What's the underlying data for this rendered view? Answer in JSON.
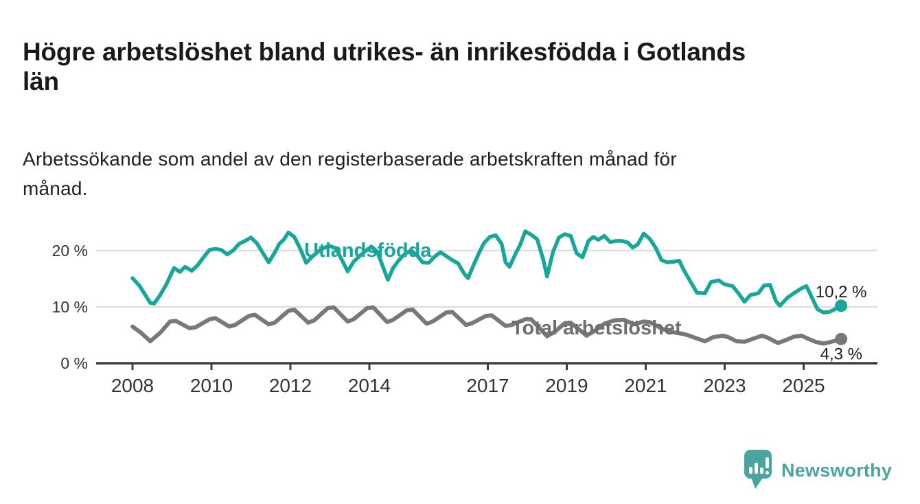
{
  "header": {
    "title_lines": [
      "Högre arbetslöshet bland utrikes- än inrikesfödda i Gotlands",
      "län"
    ],
    "subtitle_lines": [
      "Arbetssökande som andel av den registerbaserade arbetskraften månad för",
      "månad."
    ]
  },
  "chart_data": {
    "type": "line",
    "title": "Högre arbetslöshet bland utrikes- än inrikesfödda i Gotlands län",
    "subtitle": "Arbetssökande som andel av den registerbaserade arbetskraften månad för månad.",
    "unit": "%",
    "grid": "horizontal",
    "legend_position": "inline-labels",
    "x_axis": {
      "ticks": [
        2008,
        2010,
        2012,
        2014,
        2017,
        2019,
        2021,
        2023,
        2025
      ],
      "range": [
        2007.1,
        2026.9
      ]
    },
    "y_axis": {
      "range": [
        0,
        24
      ],
      "ticks": [
        {
          "value": 0,
          "label": "0 %"
        },
        {
          "value": 10,
          "label": "10 %"
        },
        {
          "value": 20,
          "label": "20 %"
        }
      ]
    },
    "colors": {
      "axis": "#3d3d3d",
      "grid": "#dadada",
      "tick_labels": "#333333",
      "value_labels": "#1d1d1d"
    },
    "series": [
      {
        "name": "Utlandsfödda",
        "color": "#18a69a",
        "end_value": 10.2,
        "end_value_label": "10,2 %",
        "label_pos": {
          "x": 2012.35,
          "y": 18.9
        },
        "value_label_pos": {
          "x": 2025.3,
          "y": 11.7
        },
        "points": [
          [
            2008.0,
            15.1
          ],
          [
            2008.17,
            13.8
          ],
          [
            2008.3,
            12.4
          ],
          [
            2008.45,
            10.7
          ],
          [
            2008.55,
            10.6
          ],
          [
            2008.7,
            12.1
          ],
          [
            2008.85,
            13.9
          ],
          [
            2009.05,
            16.9
          ],
          [
            2009.2,
            16.2
          ],
          [
            2009.33,
            17.1
          ],
          [
            2009.5,
            16.4
          ],
          [
            2009.65,
            17.4
          ],
          [
            2009.8,
            18.8
          ],
          [
            2009.95,
            20.1
          ],
          [
            2010.1,
            20.3
          ],
          [
            2010.25,
            20.1
          ],
          [
            2010.4,
            19.3
          ],
          [
            2010.55,
            20.0
          ],
          [
            2010.7,
            21.2
          ],
          [
            2010.85,
            21.7
          ],
          [
            2011.0,
            22.3
          ],
          [
            2011.15,
            21.3
          ],
          [
            2011.3,
            19.6
          ],
          [
            2011.45,
            17.9
          ],
          [
            2011.6,
            19.6
          ],
          [
            2011.72,
            21.2
          ],
          [
            2011.83,
            21.9
          ],
          [
            2011.95,
            23.2
          ],
          [
            2012.1,
            22.4
          ],
          [
            2012.25,
            20.3
          ],
          [
            2012.4,
            17.8
          ],
          [
            2012.55,
            18.9
          ],
          [
            2012.7,
            19.8
          ],
          [
            2012.85,
            20.5
          ],
          [
            2013.0,
            20.8
          ],
          [
            2013.15,
            20.4
          ],
          [
            2013.3,
            18.4
          ],
          [
            2013.45,
            16.3
          ],
          [
            2013.6,
            18.0
          ],
          [
            2013.75,
            19.0
          ],
          [
            2013.9,
            19.9
          ],
          [
            2014.05,
            20.7
          ],
          [
            2014.2,
            19.8
          ],
          [
            2014.35,
            17.0
          ],
          [
            2014.47,
            14.8
          ],
          [
            2014.6,
            16.9
          ],
          [
            2014.75,
            18.3
          ],
          [
            2014.9,
            19.4
          ],
          [
            2015.05,
            20.0
          ],
          [
            2015.2,
            19.2
          ],
          [
            2015.35,
            17.9
          ],
          [
            2015.5,
            17.8
          ],
          [
            2015.65,
            18.9
          ],
          [
            2015.8,
            19.7
          ],
          [
            2015.95,
            19.0
          ],
          [
            2016.1,
            18.3
          ],
          [
            2016.25,
            17.7
          ],
          [
            2016.4,
            15.9
          ],
          [
            2016.5,
            15.1
          ],
          [
            2016.65,
            17.6
          ],
          [
            2016.8,
            19.9
          ],
          [
            2016.9,
            21.3
          ],
          [
            2017.05,
            22.4
          ],
          [
            2017.2,
            22.7
          ],
          [
            2017.35,
            21.2
          ],
          [
            2017.45,
            17.9
          ],
          [
            2017.55,
            17.1
          ],
          [
            2017.7,
            19.4
          ],
          [
            2017.82,
            21.0
          ],
          [
            2017.95,
            23.4
          ],
          [
            2018.1,
            22.8
          ],
          [
            2018.25,
            22.0
          ],
          [
            2018.4,
            18.5
          ],
          [
            2018.5,
            15.4
          ],
          [
            2018.65,
            19.7
          ],
          [
            2018.8,
            22.3
          ],
          [
            2018.95,
            22.9
          ],
          [
            2019.1,
            22.6
          ],
          [
            2019.25,
            19.5
          ],
          [
            2019.4,
            18.8
          ],
          [
            2019.55,
            21.7
          ],
          [
            2019.67,
            22.4
          ],
          [
            2019.8,
            21.9
          ],
          [
            2019.95,
            22.6
          ],
          [
            2020.1,
            21.5
          ],
          [
            2020.25,
            21.7
          ],
          [
            2020.4,
            21.7
          ],
          [
            2020.55,
            21.4
          ],
          [
            2020.67,
            20.5
          ],
          [
            2020.8,
            21.1
          ],
          [
            2020.95,
            23.0
          ],
          [
            2021.1,
            22.1
          ],
          [
            2021.25,
            20.5
          ],
          [
            2021.4,
            18.3
          ],
          [
            2021.55,
            17.9
          ],
          [
            2021.7,
            18.0
          ],
          [
            2021.85,
            18.2
          ],
          [
            2021.95,
            16.7
          ],
          [
            2022.1,
            14.9
          ],
          [
            2022.3,
            12.5
          ],
          [
            2022.5,
            12.4
          ],
          [
            2022.65,
            14.4
          ],
          [
            2022.85,
            14.7
          ],
          [
            2023.0,
            14.0
          ],
          [
            2023.2,
            13.7
          ],
          [
            2023.35,
            12.4
          ],
          [
            2023.5,
            10.9
          ],
          [
            2023.65,
            12.1
          ],
          [
            2023.85,
            12.4
          ],
          [
            2024.0,
            13.8
          ],
          [
            2024.15,
            13.9
          ],
          [
            2024.3,
            11.0
          ],
          [
            2024.4,
            10.2
          ],
          [
            2024.6,
            11.7
          ],
          [
            2024.75,
            12.4
          ],
          [
            2024.95,
            13.3
          ],
          [
            2025.07,
            13.7
          ],
          [
            2025.2,
            11.8
          ],
          [
            2025.35,
            9.6
          ],
          [
            2025.5,
            9.0
          ],
          [
            2025.65,
            9.1
          ],
          [
            2025.8,
            9.6
          ],
          [
            2025.95,
            10.2
          ]
        ]
      },
      {
        "name": "Total arbetslöshet",
        "color": "#787878",
        "label_color": "#6f6f6f",
        "end_value": 4.3,
        "end_value_label": "4,3 %",
        "label_pos": {
          "x": 2017.6,
          "y": 5.1
        },
        "value_label_pos": {
          "x": 2025.42,
          "y": 0.7
        },
        "points": [
          [
            2008.0,
            6.5
          ],
          [
            2008.2,
            5.5
          ],
          [
            2008.45,
            3.9
          ],
          [
            2008.7,
            5.4
          ],
          [
            2008.95,
            7.4
          ],
          [
            2009.1,
            7.5
          ],
          [
            2009.45,
            6.2
          ],
          [
            2009.6,
            6.4
          ],
          [
            2009.95,
            7.8
          ],
          [
            2010.1,
            8.0
          ],
          [
            2010.45,
            6.5
          ],
          [
            2010.6,
            6.8
          ],
          [
            2010.95,
            8.4
          ],
          [
            2011.1,
            8.6
          ],
          [
            2011.45,
            6.9
          ],
          [
            2011.6,
            7.2
          ],
          [
            2011.95,
            9.3
          ],
          [
            2012.1,
            9.5
          ],
          [
            2012.45,
            7.2
          ],
          [
            2012.6,
            7.6
          ],
          [
            2012.95,
            9.8
          ],
          [
            2013.1,
            9.9
          ],
          [
            2013.45,
            7.4
          ],
          [
            2013.6,
            7.8
          ],
          [
            2013.95,
            9.8
          ],
          [
            2014.1,
            9.9
          ],
          [
            2014.45,
            7.3
          ],
          [
            2014.6,
            7.7
          ],
          [
            2014.95,
            9.4
          ],
          [
            2015.1,
            9.5
          ],
          [
            2015.45,
            7.0
          ],
          [
            2015.6,
            7.4
          ],
          [
            2015.95,
            9.0
          ],
          [
            2016.1,
            9.1
          ],
          [
            2016.45,
            6.8
          ],
          [
            2016.6,
            7.1
          ],
          [
            2016.95,
            8.4
          ],
          [
            2017.1,
            8.5
          ],
          [
            2017.45,
            6.6
          ],
          [
            2017.6,
            6.8
          ],
          [
            2017.95,
            7.8
          ],
          [
            2018.1,
            7.8
          ],
          [
            2018.5,
            4.8
          ],
          [
            2018.7,
            5.6
          ],
          [
            2018.95,
            7.1
          ],
          [
            2019.1,
            7.2
          ],
          [
            2019.5,
            4.9
          ],
          [
            2019.7,
            5.7
          ],
          [
            2019.95,
            7.0
          ],
          [
            2020.2,
            7.6
          ],
          [
            2020.45,
            7.7
          ],
          [
            2020.7,
            6.9
          ],
          [
            2020.95,
            7.4
          ],
          [
            2021.1,
            7.3
          ],
          [
            2021.45,
            6.0
          ],
          [
            2021.7,
            5.5
          ],
          [
            2021.95,
            5.2
          ],
          [
            2022.1,
            4.9
          ],
          [
            2022.3,
            4.4
          ],
          [
            2022.5,
            3.9
          ],
          [
            2022.7,
            4.6
          ],
          [
            2022.95,
            4.9
          ],
          [
            2023.1,
            4.6
          ],
          [
            2023.3,
            3.9
          ],
          [
            2023.5,
            3.8
          ],
          [
            2023.7,
            4.3
          ],
          [
            2023.95,
            4.9
          ],
          [
            2024.1,
            4.5
          ],
          [
            2024.35,
            3.6
          ],
          [
            2024.55,
            4.1
          ],
          [
            2024.75,
            4.7
          ],
          [
            2024.95,
            4.9
          ],
          [
            2025.1,
            4.4
          ],
          [
            2025.3,
            3.8
          ],
          [
            2025.5,
            3.5
          ],
          [
            2025.7,
            3.8
          ],
          [
            2025.95,
            4.3
          ]
        ]
      }
    ]
  },
  "footer": {
    "brand": "Newsworthy",
    "brand_color": "#4aa4a1"
  }
}
